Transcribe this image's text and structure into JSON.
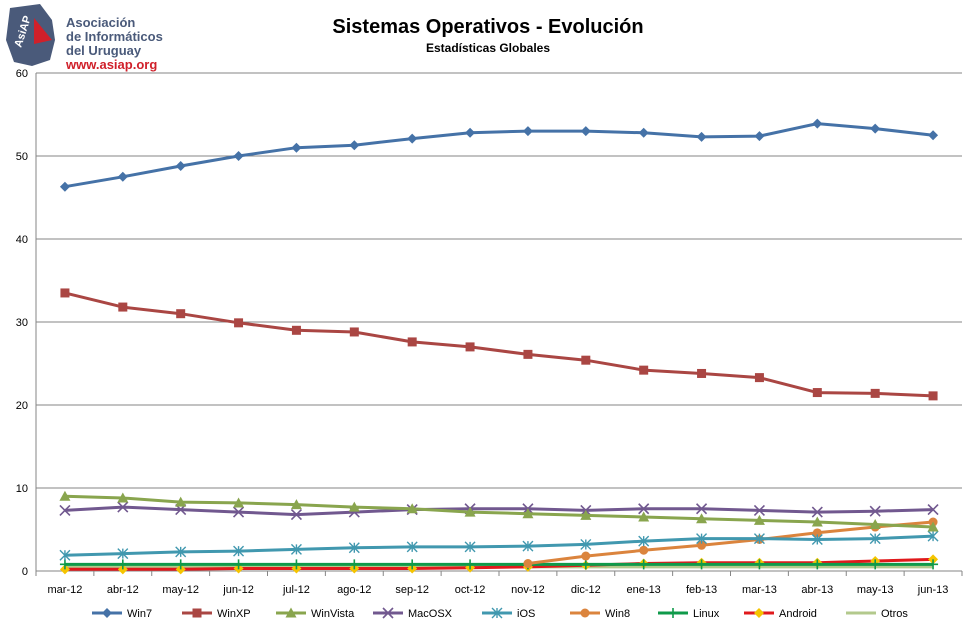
{
  "logo": {
    "badge_text": "AsiAP",
    "line1": "Asociación",
    "line2": "de Informáticos",
    "line3": "del Uruguay",
    "url": "www.asiap.org"
  },
  "chart_data": {
    "type": "line",
    "title": "Sistemas Operativos - Evolución",
    "subtitle": "Estadísticas Globales",
    "xlabel": "",
    "ylabel": "",
    "ylim": [
      0,
      60
    ],
    "yticks": [
      0,
      10,
      20,
      30,
      40,
      50,
      60
    ],
    "grid": "horizontal-major",
    "legend": "bottom",
    "categories": [
      "mar-12",
      "abr-12",
      "may-12",
      "jun-12",
      "jul-12",
      "ago-12",
      "sep-12",
      "oct-12",
      "nov-12",
      "dic-12",
      "ene-13",
      "feb-13",
      "mar-13",
      "abr-13",
      "may-13",
      "jun-13"
    ],
    "series": [
      {
        "name": "Win7",
        "color": "#4572a7",
        "marker": "diamond",
        "values": [
          46.3,
          47.5,
          48.8,
          50.0,
          51.0,
          51.3,
          52.1,
          52.8,
          53.0,
          53.0,
          52.8,
          52.3,
          52.4,
          53.9,
          53.3,
          52.5
        ]
      },
      {
        "name": "WinXP",
        "color": "#aa4643",
        "marker": "square",
        "values": [
          33.5,
          31.8,
          31.0,
          29.9,
          29.0,
          28.8,
          27.6,
          27.0,
          26.1,
          25.4,
          24.2,
          23.8,
          23.3,
          21.5,
          21.4,
          21.1
        ]
      },
      {
        "name": "WinVista",
        "color": "#89a54e",
        "marker": "triangle",
        "values": [
          9.0,
          8.8,
          8.3,
          8.2,
          8.0,
          7.7,
          7.5,
          7.1,
          6.9,
          6.7,
          6.5,
          6.3,
          6.1,
          5.9,
          5.6,
          5.3
        ]
      },
      {
        "name": "MacOSX",
        "color": "#71588f",
        "marker": "x",
        "values": [
          7.3,
          7.7,
          7.4,
          7.1,
          6.8,
          7.1,
          7.4,
          7.5,
          7.5,
          7.3,
          7.5,
          7.5,
          7.3,
          7.1,
          7.2,
          7.4
        ]
      },
      {
        "name": "iOS",
        "color": "#4198af",
        "marker": "star",
        "values": [
          1.9,
          2.1,
          2.3,
          2.4,
          2.6,
          2.8,
          2.9,
          2.9,
          3.0,
          3.2,
          3.6,
          3.9,
          3.9,
          3.8,
          3.9,
          4.2
        ]
      },
      {
        "name": "Win8",
        "color": "#db843d",
        "marker": "circle",
        "values": [
          null,
          null,
          null,
          null,
          null,
          null,
          null,
          null,
          0.9,
          1.8,
          2.5,
          3.1,
          3.8,
          4.6,
          5.3,
          5.9
        ]
      },
      {
        "name": "Linux",
        "color": "#0f9a4a",
        "marker": "plus",
        "values": [
          0.8,
          0.8,
          0.8,
          0.8,
          0.8,
          0.8,
          0.8,
          0.8,
          0.8,
          0.8,
          0.8,
          0.8,
          0.8,
          0.8,
          0.8,
          0.8
        ]
      },
      {
        "name": "Android",
        "color": "#e0191c",
        "marker": "diamond-yellow",
        "values": [
          0.2,
          0.2,
          0.2,
          0.3,
          0.3,
          0.3,
          0.3,
          0.4,
          0.5,
          0.7,
          0.9,
          1.0,
          1.0,
          1.0,
          1.2,
          1.4
        ]
      },
      {
        "name": "Otros",
        "color": "#b3c98c",
        "marker": "none",
        "values": [
          0.5,
          0.5,
          0.5,
          0.5,
          0.5,
          0.5,
          0.5,
          0.5,
          0.5,
          0.5,
          0.5,
          0.5,
          0.5,
          0.5,
          0.5,
          0.5
        ]
      }
    ]
  }
}
